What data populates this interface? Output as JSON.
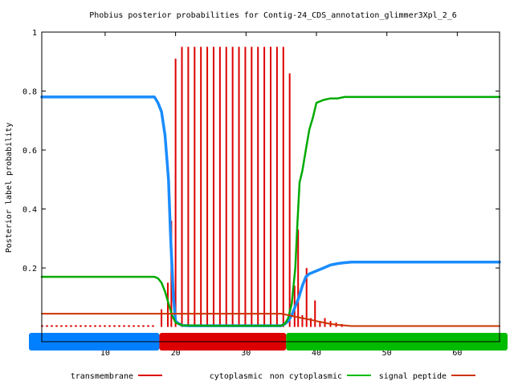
{
  "chart_data": {
    "type": "line",
    "title": "Phobius posterior probabilities for Contig-24_CDS_annotation_glimmer3Xpl_2_6",
    "ylabel": "Posterior label probability",
    "xlabel": "",
    "xlim": [
      1,
      66
    ],
    "ylim": [
      -0.05,
      1
    ],
    "x_ticks": [
      10,
      20,
      30,
      40,
      50,
      60
    ],
    "x_tick_labels": [
      "10",
      "20",
      "30",
      "40",
      "50",
      "60"
    ],
    "y_ticks": [
      0.2,
      0.4,
      0.6,
      0.8,
      1
    ],
    "y_tick_labels": [
      "0.2",
      "0.4",
      "0.6",
      "0.8",
      "1"
    ],
    "grid": false,
    "legend_position": "bottom",
    "legend": [
      {
        "label": "transmembrane",
        "color": "#dd0000",
        "style": "impulses"
      },
      {
        "label": "cytoplasmic",
        "color": "#dd0000",
        "style": "line",
        "hidden_sample": true
      },
      {
        "label": "non cytoplasmic",
        "color": "#00bb00",
        "style": "line"
      },
      {
        "label": "signal peptide",
        "color": "#0080ff",
        "style": "line"
      },
      {
        "label": "",
        "color": "#cc3300",
        "style": "line"
      }
    ],
    "topology_bar": {
      "y": -0.05,
      "segments": [
        {
          "label": "signal peptide",
          "start": 1,
          "end": 17.7,
          "color": "#0080ff"
        },
        {
          "label": "cytoplasmic",
          "start": 17.7,
          "end": 35.7,
          "color": "#dd0000"
        },
        {
          "label": "non cytoplasmic",
          "start": 35.7,
          "end": 66,
          "color": "#00bb00"
        }
      ]
    },
    "series": [
      {
        "name": "signal peptide",
        "color": "#1a8cff",
        "x": [
          1,
          8,
          17,
          17.5,
          18,
          18.5,
          19,
          19.3,
          19.7,
          20,
          20.5,
          21,
          22,
          25,
          30,
          35,
          35.5,
          36,
          36.5,
          37,
          37.5,
          38,
          38.5,
          39,
          40,
          41,
          42,
          43,
          44,
          45,
          50,
          60,
          66
        ],
        "y": [
          0.78,
          0.78,
          0.78,
          0.76,
          0.73,
          0.65,
          0.5,
          0.3,
          0.1,
          0.02,
          0.01,
          0.005,
          0.004,
          0.004,
          0.004,
          0.004,
          0.01,
          0.02,
          0.04,
          0.07,
          0.1,
          0.14,
          0.17,
          0.18,
          0.19,
          0.2,
          0.21,
          0.215,
          0.218,
          0.22,
          0.22,
          0.22,
          0.22
        ]
      },
      {
        "name": "non cytoplasmic",
        "color": "#00aa00",
        "x": [
          1,
          10,
          17,
          17.5,
          18,
          18.5,
          19,
          19.5,
          20,
          21,
          25,
          30,
          35,
          35.5,
          36,
          36.5,
          37,
          37.3,
          37.6,
          38,
          38.5,
          39,
          39.5,
          40,
          41,
          42,
          43,
          44,
          45,
          50,
          60,
          66
        ],
        "y": [
          0.17,
          0.17,
          0.17,
          0.165,
          0.15,
          0.12,
          0.08,
          0.04,
          0.015,
          0.005,
          0.004,
          0.004,
          0.004,
          0.01,
          0.03,
          0.08,
          0.2,
          0.35,
          0.49,
          0.53,
          0.6,
          0.67,
          0.71,
          0.76,
          0.77,
          0.775,
          0.775,
          0.78,
          0.78,
          0.78,
          0.78,
          0.78
        ]
      },
      {
        "name": "cytoplasmic",
        "color": "#cc3300",
        "x": [
          1,
          10,
          17,
          20,
          25,
          30,
          34,
          35,
          36,
          37,
          38,
          39,
          40,
          41,
          42,
          43,
          44,
          45,
          50,
          60,
          66
        ],
        "y": [
          0.045,
          0.045,
          0.045,
          0.045,
          0.045,
          0.045,
          0.045,
          0.045,
          0.04,
          0.035,
          0.03,
          0.025,
          0.02,
          0.015,
          0.01,
          0.007,
          0.005,
          0.003,
          0.003,
          0.003,
          0.003
        ]
      },
      {
        "name": "cytoplasmic (dotted, pre-signal region)",
        "color": "#dd0000",
        "dotted": true,
        "x": [
          1,
          17
        ],
        "y": [
          0.003,
          0.003
        ]
      },
      {
        "name": "transmembrane",
        "color": "#dd0000",
        "style": "impulses",
        "x": [
          18,
          18.9,
          19.4,
          20,
          20.9,
          21.8,
          22.7,
          23.6,
          24.5,
          25.4,
          26.3,
          27.2,
          28.1,
          29,
          29.9,
          30.8,
          31.7,
          32.6,
          33.5,
          34.4,
          35.3,
          36.2,
          36.9,
          37.4,
          38,
          38.6,
          39.2,
          39.8,
          40.5,
          41.2,
          42,
          42.8,
          43.6
        ],
        "y": [
          0.06,
          0.15,
          0.36,
          0.91,
          0.95,
          0.95,
          0.95,
          0.95,
          0.95,
          0.95,
          0.95,
          0.95,
          0.95,
          0.95,
          0.95,
          0.95,
          0.95,
          0.95,
          0.95,
          0.95,
          0.95,
          0.86,
          0.14,
          0.33,
          0.04,
          0.2,
          0.03,
          0.09,
          0.02,
          0.03,
          0.02,
          0.015,
          0.01
        ]
      }
    ]
  }
}
